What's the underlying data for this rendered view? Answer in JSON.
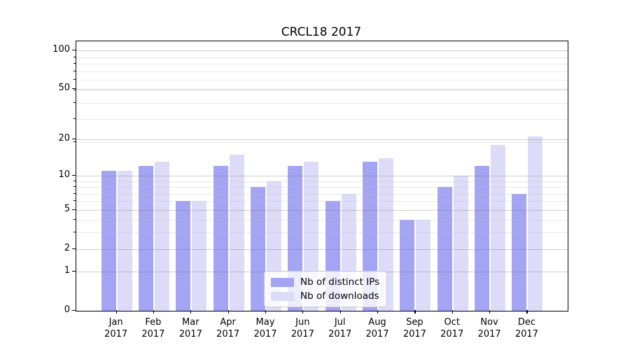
{
  "chart_data": {
    "type": "bar",
    "title": "CRCL18 2017",
    "categories": [
      "Jan",
      "Feb",
      "Mar",
      "Apr",
      "May",
      "Jun",
      "Jul",
      "Aug",
      "Sep",
      "Oct",
      "Nov",
      "Dec"
    ],
    "year_label": "2017",
    "series": [
      {
        "name": "Nb of distinct IPs",
        "color": "#a4a4f4",
        "values": [
          11,
          12,
          6,
          12,
          8,
          12,
          6,
          13,
          4,
          8,
          12,
          7
        ]
      },
      {
        "name": "Nb of downloads",
        "color": "#dcdcf8",
        "values": [
          11,
          13,
          6,
          15,
          9,
          13,
          7,
          14,
          4,
          10,
          18,
          21
        ]
      }
    ],
    "xlabel": "",
    "ylabel": "",
    "yscale": "log1p",
    "ylim": [
      0,
      118
    ],
    "yticks": [
      0,
      1,
      2,
      5,
      10,
      20,
      50,
      100
    ],
    "yticks_minor": [
      3,
      4,
      6,
      7,
      8,
      9,
      19,
      29,
      39,
      49,
      59,
      69,
      79,
      89
    ],
    "grid": true,
    "legend": {
      "position": "lower center",
      "entries": [
        "Nb of distinct IPs",
        "Nb of downloads"
      ]
    }
  }
}
